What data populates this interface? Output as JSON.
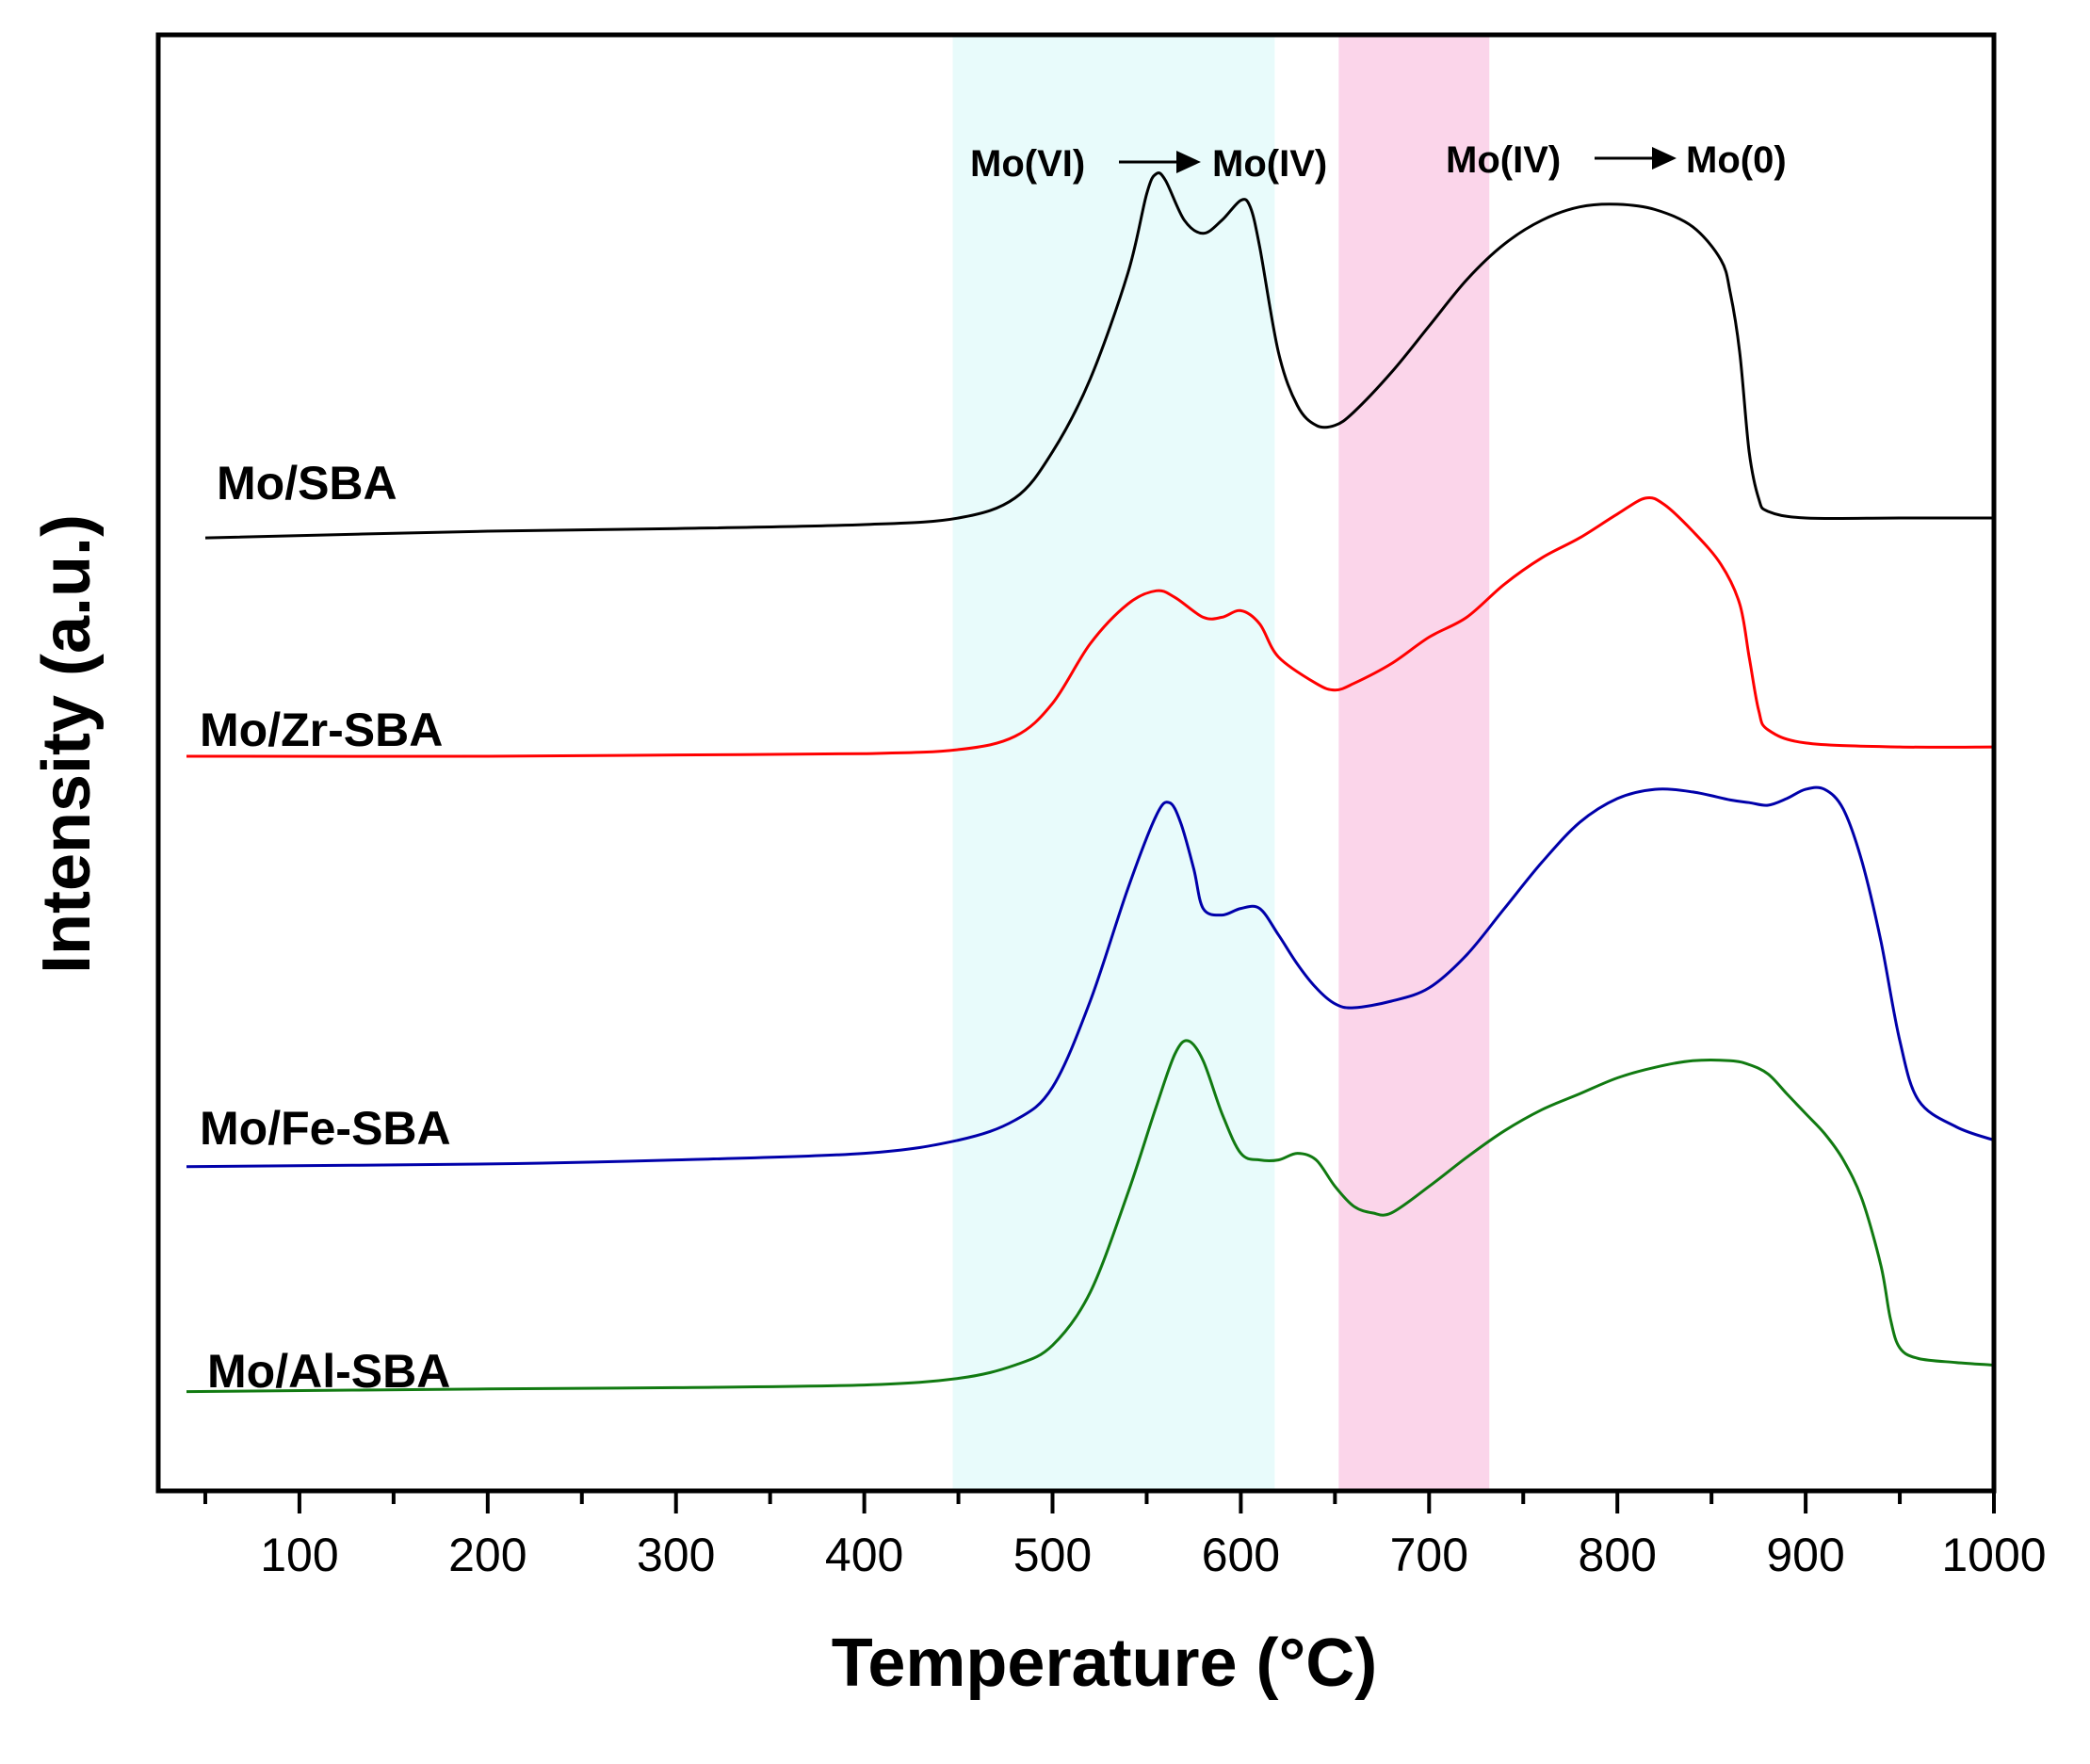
{
  "chart_data": {
    "type": "line",
    "xlabel": "Temperature (°C)",
    "ylabel": "Intensity (a.u.)",
    "xlim": [
      25,
      1000
    ],
    "ylim": [
      0,
      11
    ],
    "xticks": [
      100,
      200,
      300,
      400,
      500,
      600,
      700,
      800,
      900,
      1000
    ],
    "x_minor_step": 50,
    "grid": false,
    "regions": [
      {
        "name": "reduction-1",
        "from": 447,
        "to": 618,
        "color": "#e8fbfb",
        "label": {
          "from": "Mo(VI)",
          "to": "Mo(IV)"
        }
      },
      {
        "name": "reduction-2",
        "from": 652,
        "to": 732,
        "color": "#fbd5ea",
        "label": {
          "from": "Mo(IV)",
          "to": "Mo(0)"
        }
      }
    ],
    "series": [
      {
        "name": "Mo/SBA",
        "color": "#000000",
        "x": [
          50,
          200,
          300,
          400,
          450,
          480,
          500,
          520,
          540,
          550,
          555,
          560,
          570,
          580,
          590,
          600,
          605,
          610,
          620,
          630,
          640,
          650,
          660,
          680,
          700,
          720,
          740,
          760,
          780,
          800,
          820,
          840,
          855,
          860,
          865,
          870,
          875,
          880,
          900,
          950,
          1000
        ],
        "y": [
          7.2,
          7.25,
          7.27,
          7.3,
          7.35,
          7.5,
          7.85,
          8.4,
          9.2,
          9.8,
          9.95,
          9.9,
          9.6,
          9.5,
          9.6,
          9.75,
          9.7,
          9.4,
          8.6,
          8.2,
          8.05,
          8.05,
          8.15,
          8.45,
          8.8,
          9.15,
          9.42,
          9.6,
          9.7,
          9.72,
          9.68,
          9.55,
          9.3,
          9.05,
          8.6,
          7.85,
          7.5,
          7.4,
          7.35,
          7.35,
          7.35
        ]
      },
      {
        "name": "Mo/Zr-SBA",
        "color": "#ff0000",
        "x": [
          40,
          200,
          300,
          400,
          450,
          480,
          500,
          520,
          540,
          555,
          565,
          580,
          590,
          600,
          610,
          620,
          640,
          650,
          660,
          680,
          700,
          720,
          740,
          760,
          780,
          800,
          815,
          825,
          840,
          855,
          865,
          870,
          875,
          880,
          900,
          950,
          1000
        ],
        "y": [
          5.55,
          5.55,
          5.56,
          5.57,
          5.6,
          5.7,
          5.95,
          6.4,
          6.7,
          6.8,
          6.75,
          6.6,
          6.6,
          6.65,
          6.55,
          6.3,
          6.1,
          6.05,
          6.1,
          6.25,
          6.45,
          6.6,
          6.85,
          7.05,
          7.2,
          7.38,
          7.5,
          7.45,
          7.25,
          7.0,
          6.7,
          6.3,
          5.9,
          5.75,
          5.65,
          5.62,
          5.62
        ]
      },
      {
        "name": "Mo/Fe-SBA",
        "color": "#0000aa",
        "x": [
          40,
          200,
          300,
          400,
          450,
          480,
          500,
          520,
          540,
          555,
          562,
          568,
          575,
          580,
          590,
          600,
          610,
          620,
          630,
          640,
          650,
          660,
          680,
          700,
          720,
          740,
          760,
          780,
          800,
          820,
          840,
          860,
          870,
          880,
          890,
          900,
          910,
          920,
          930,
          940,
          950,
          960,
          980,
          1000
        ],
        "y": [
          2.45,
          2.47,
          2.5,
          2.55,
          2.65,
          2.8,
          3.05,
          3.7,
          4.55,
          5.1,
          5.2,
          5.05,
          4.7,
          4.4,
          4.35,
          4.4,
          4.4,
          4.2,
          3.98,
          3.8,
          3.68,
          3.65,
          3.7,
          3.8,
          4.05,
          4.4,
          4.75,
          5.05,
          5.23,
          5.3,
          5.28,
          5.22,
          5.2,
          5.18,
          5.23,
          5.3,
          5.3,
          5.15,
          4.75,
          4.15,
          3.4,
          2.95,
          2.75,
          2.65
        ]
      },
      {
        "name": "Mo/Al-SBA",
        "color": "#117a11",
        "x": [
          40,
          200,
          300,
          400,
          450,
          480,
          500,
          520,
          540,
          555,
          565,
          572,
          580,
          590,
          600,
          610,
          620,
          630,
          640,
          650,
          660,
          670,
          680,
          700,
          720,
          740,
          760,
          780,
          800,
          820,
          840,
          860,
          870,
          880,
          890,
          900,
          910,
          920,
          930,
          940,
          945,
          950,
          960,
          980,
          1000
        ],
        "y": [
          0.75,
          0.77,
          0.78,
          0.8,
          0.85,
          0.95,
          1.1,
          1.5,
          2.25,
          2.9,
          3.3,
          3.4,
          3.25,
          2.85,
          2.55,
          2.5,
          2.5,
          2.55,
          2.5,
          2.3,
          2.15,
          2.1,
          2.1,
          2.3,
          2.52,
          2.72,
          2.88,
          3.0,
          3.12,
          3.2,
          3.25,
          3.25,
          3.22,
          3.15,
          3.0,
          2.85,
          2.7,
          2.5,
          2.2,
          1.7,
          1.3,
          1.08,
          1.0,
          0.97,
          0.95
        ]
      }
    ]
  }
}
